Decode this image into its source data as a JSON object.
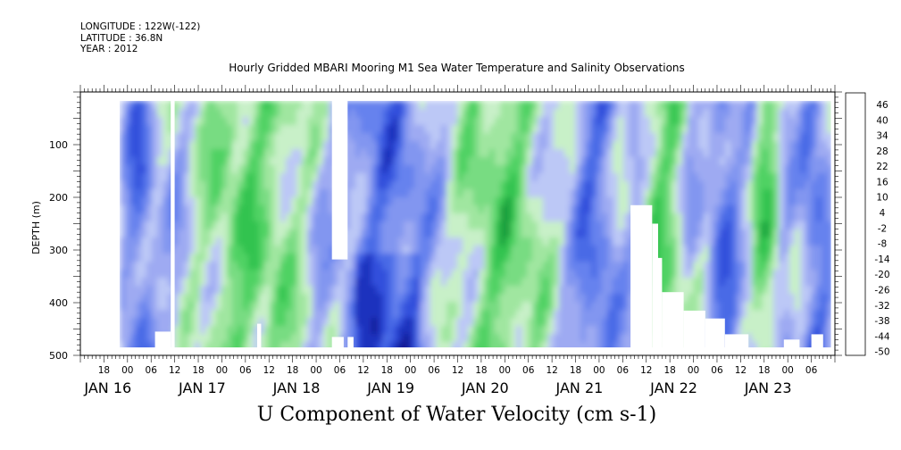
{
  "meta": {
    "longitude": "LONGITUDE : 122W(-122)",
    "latitude": "LATITUDE : 36.8N",
    "year": "YEAR : 2012"
  },
  "title": "Hourly Gridded MBARI Mooring M1 Sea Water Temperature and Salinity Observations",
  "bottom_title": "U Component of Water Velocity (cm s-1)",
  "chart_data": {
    "type": "heatmap",
    "title": "Hourly Gridded MBARI Mooring M1 Sea Water Temperature and Salinity Observations",
    "xlabel": "",
    "ylabel": "DEPTH (m)",
    "variable": "U Component of Water Velocity (cm s-1)",
    "x_range": [
      "2012-01-15T12:00",
      "2012-01-23T12:00"
    ],
    "y_range": [
      0,
      500
    ],
    "y_inverted": true,
    "y_ticks": [
      100,
      200,
      300,
      400,
      500
    ],
    "x_hour_ticks": [
      {
        "t": "2012-01-15T18:00",
        "label": "18"
      },
      {
        "t": "2012-01-16T00:00",
        "label": "00"
      },
      {
        "t": "2012-01-16T06:00",
        "label": "06"
      },
      {
        "t": "2012-01-16T12:00",
        "label": "12"
      },
      {
        "t": "2012-01-16T18:00",
        "label": "18"
      },
      {
        "t": "2012-01-17T00:00",
        "label": "00"
      },
      {
        "t": "2012-01-17T06:00",
        "label": "06"
      },
      {
        "t": "2012-01-17T12:00",
        "label": "12"
      },
      {
        "t": "2012-01-17T18:00",
        "label": "18"
      },
      {
        "t": "2012-01-18T00:00",
        "label": "00"
      },
      {
        "t": "2012-01-18T06:00",
        "label": "06"
      },
      {
        "t": "2012-01-18T12:00",
        "label": "12"
      },
      {
        "t": "2012-01-18T18:00",
        "label": "18"
      },
      {
        "t": "2012-01-19T00:00",
        "label": "00"
      },
      {
        "t": "2012-01-19T06:00",
        "label": "06"
      },
      {
        "t": "2012-01-19T12:00",
        "label": "12"
      },
      {
        "t": "2012-01-19T18:00",
        "label": "18"
      },
      {
        "t": "2012-01-20T00:00",
        "label": "00"
      },
      {
        "t": "2012-01-20T06:00",
        "label": "06"
      },
      {
        "t": "2012-01-20T12:00",
        "label": "12"
      },
      {
        "t": "2012-01-20T18:00",
        "label": "18"
      },
      {
        "t": "2012-01-21T00:00",
        "label": "00"
      },
      {
        "t": "2012-01-21T06:00",
        "label": "06"
      },
      {
        "t": "2012-01-21T12:00",
        "label": "12"
      },
      {
        "t": "2012-01-21T18:00",
        "label": "18"
      },
      {
        "t": "2012-01-22T00:00",
        "label": "00"
      },
      {
        "t": "2012-01-22T06:00",
        "label": "06"
      },
      {
        "t": "2012-01-22T12:00",
        "label": "12"
      },
      {
        "t": "2012-01-22T18:00",
        "label": "18"
      },
      {
        "t": "2012-01-23T00:00",
        "label": "00"
      },
      {
        "t": "2012-01-23T06:00",
        "label": "06"
      }
    ],
    "x_day_ticks": [
      {
        "t": "2012-01-16T00:00",
        "label": "JAN 16"
      },
      {
        "t": "2012-01-17T00:00",
        "label": "JAN 17"
      },
      {
        "t": "2012-01-18T00:00",
        "label": "JAN 18"
      },
      {
        "t": "2012-01-19T00:00",
        "label": "JAN 19"
      },
      {
        "t": "2012-01-20T00:00",
        "label": "JAN 20"
      },
      {
        "t": "2012-01-21T00:00",
        "label": "JAN 21"
      },
      {
        "t": "2012-01-22T00:00",
        "label": "JAN 22"
      },
      {
        "t": "2012-01-23T00:00",
        "label": "JAN 23"
      }
    ],
    "colorbar": {
      "levels": [
        -50,
        -44,
        -38,
        -32,
        -26,
        -20,
        -14,
        -8,
        -2,
        4,
        10,
        16,
        22,
        28,
        34,
        40,
        46
      ],
      "labels": [
        "46",
        "40",
        "34",
        "28",
        "22",
        "16",
        "10",
        "4",
        "-2",
        "-8",
        "-14",
        "-20",
        "-26",
        "-32",
        "-38",
        "-44",
        "-50"
      ],
      "colors_low_to_high": [
        "#0a0a6e",
        "#141e96",
        "#1e32be",
        "#3250dc",
        "#4a6ae6",
        "#6682ee",
        "#8296f0",
        "#9eaaf2",
        "#bcc8f6",
        "#c8f0c8",
        "#a0e6a0",
        "#78dc82",
        "#50d264",
        "#32c350",
        "#1ea03c",
        "#147828",
        "#0a5019"
      ]
    },
    "data_start": "2012-01-15T22:00",
    "data_end": "2012-01-23T11:00",
    "grid": false,
    "legend": "colorbar-right"
  }
}
